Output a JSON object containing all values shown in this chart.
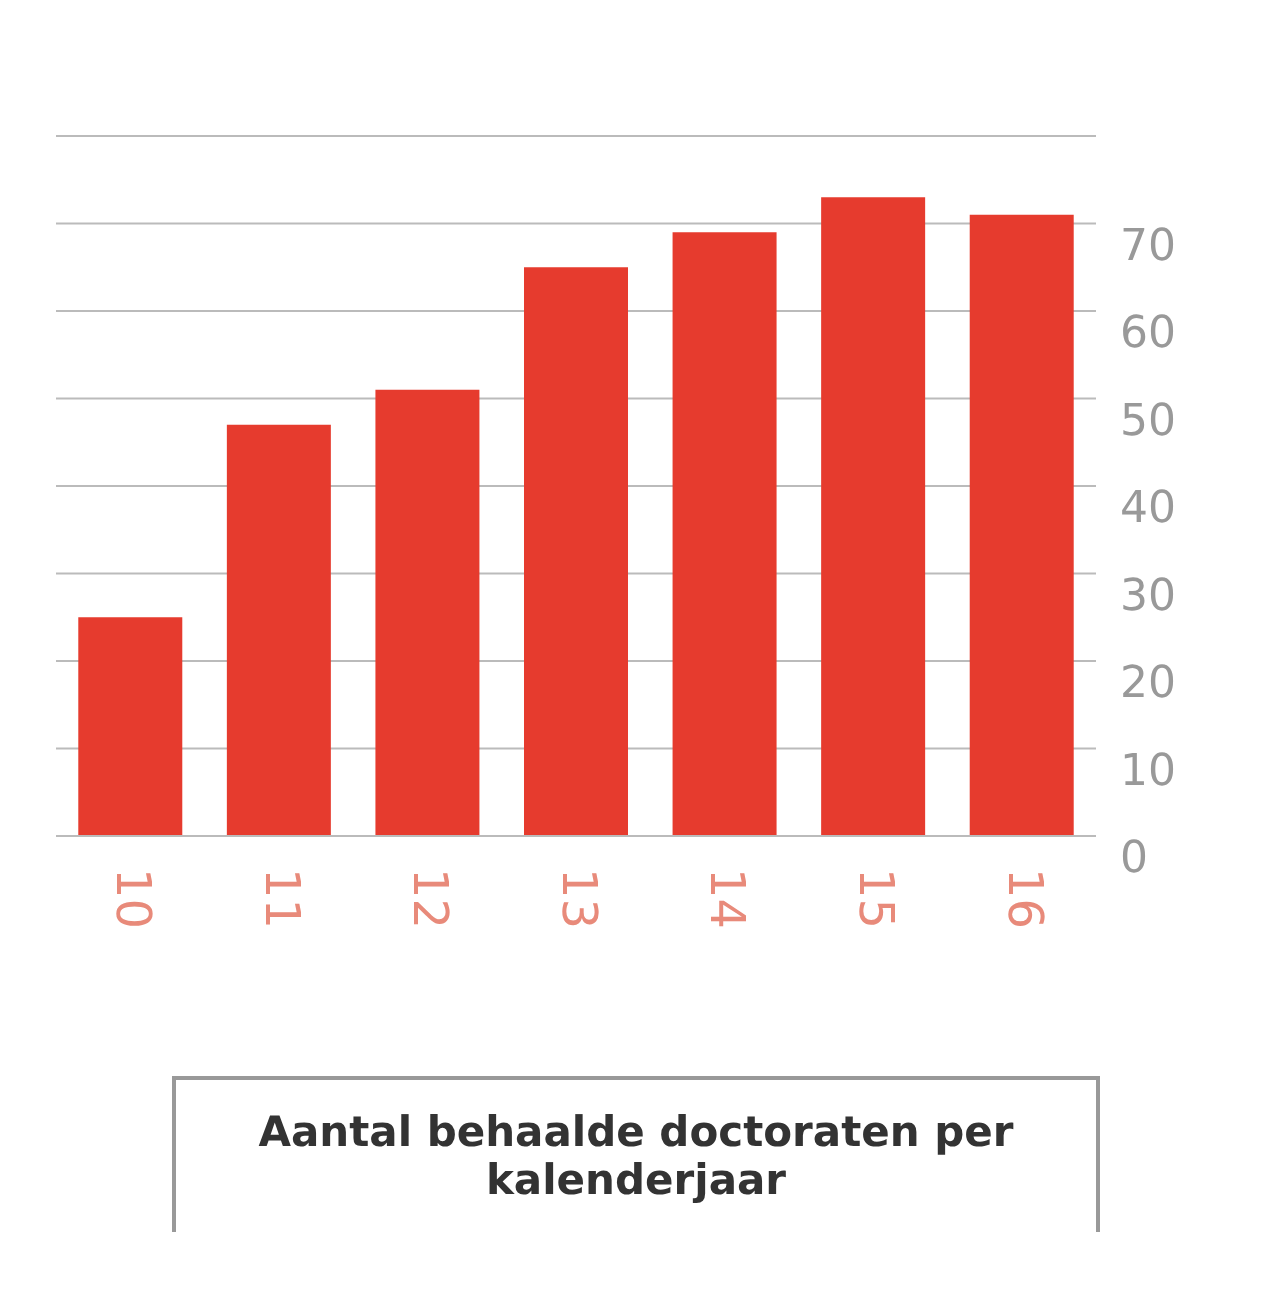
{
  "chart_data": {
    "type": "bar",
    "title": "Aantal behaalde doctoraten per kalenderjaar",
    "categories": [
      "10",
      "11",
      "12",
      "13",
      "14",
      "15",
      "16"
    ],
    "values": [
      25,
      47,
      51,
      65,
      69,
      73,
      71
    ],
    "color": "#e63b2e",
    "ylim": [
      0,
      80
    ],
    "yticks": [
      0,
      10,
      20,
      30,
      40,
      50,
      60,
      70
    ],
    "grid": "y"
  }
}
